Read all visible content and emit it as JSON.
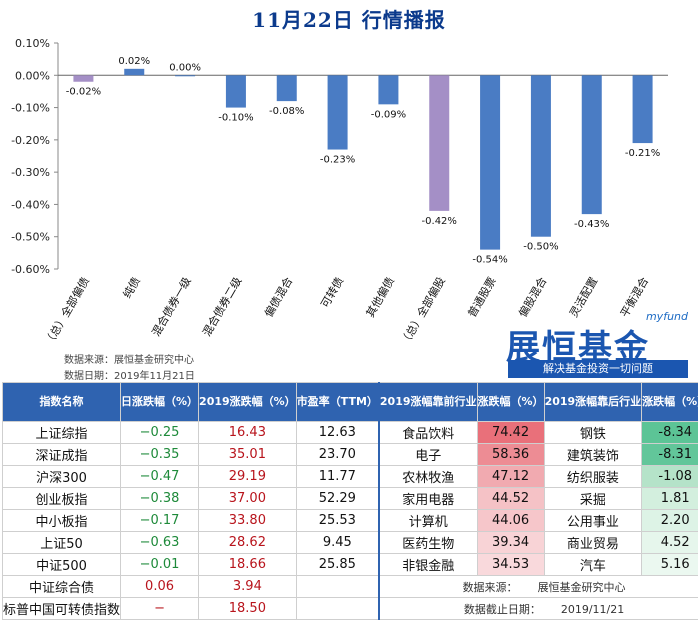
{
  "header": {
    "title": "11月22日 行情播报"
  },
  "chart_data": {
    "type": "bar",
    "categories": [
      "（总）全部偏债",
      "纯债",
      "混合债券一级",
      "混合债券二级",
      "偏债混合",
      "可转债",
      "其他偏债",
      "（总）全部偏股",
      "普通股票",
      "偏股混合",
      "灵活配置",
      "平衡混合"
    ],
    "values": [
      -0.02,
      0.02,
      0.0,
      -0.1,
      -0.08,
      -0.23,
      -0.09,
      -0.42,
      -0.54,
      -0.5,
      -0.43,
      -0.21
    ],
    "value_labels": [
      "-0.02%",
      "0.02%",
      "0.00%",
      "-0.10%",
      "-0.08%",
      "-0.23%",
      "-0.09%",
      "-0.42%",
      "-0.54%",
      "-0.50%",
      "-0.43%",
      "-0.21%"
    ],
    "ylim": [
      -0.6,
      0.1
    ],
    "yticks": [
      0.1,
      0.0,
      -0.1,
      -0.2,
      -0.3,
      -0.4,
      -0.5,
      -0.6
    ],
    "ytick_labels": [
      "0.10%",
      "0.00%",
      "-0.10%",
      "-0.20%",
      "-0.30%",
      "-0.40%",
      "-0.50%",
      "-0.60%"
    ],
    "grid": false,
    "bar_colors": [
      "#a48fc6",
      "#4a7cc4",
      "#4a7cc4",
      "#4a7cc4",
      "#4a7cc4",
      "#4a7cc4",
      "#4a7cc4",
      "#a48fc6",
      "#4a7cc4",
      "#4a7cc4",
      "#4a7cc4",
      "#4a7cc4"
    ]
  },
  "source": {
    "line1": "数据来源：展恒基金研究中心",
    "line2": "数据日期：2019年11月21日"
  },
  "logo": {
    "en": "myfund",
    "cn": "展恒基金",
    "slogan": "解决基金投资一切问题"
  },
  "table": {
    "headers": [
      "指数名称",
      "日涨跌幅（%）",
      "2019涨跌幅（%）",
      "市盈率（TTM）",
      "2019涨幅靠前行业",
      "涨跌幅（%）",
      "2019涨幅靠后行业",
      "涨跌幅（%）"
    ],
    "rows": [
      {
        "name": "上证综指",
        "day": "−0.25",
        "ytd": "16.43",
        "pe": "12.63",
        "top_ind": "食品饮料",
        "top_val": "74.42",
        "bot_ind": "钢铁",
        "bot_val": "-8.34"
      },
      {
        "name": "深证成指",
        "day": "−0.35",
        "ytd": "35.01",
        "pe": "23.70",
        "top_ind": "电子",
        "top_val": "58.36",
        "bot_ind": "建筑装饰",
        "bot_val": "-8.31"
      },
      {
        "name": "沪深300",
        "day": "−0.47",
        "ytd": "29.19",
        "pe": "11.77",
        "top_ind": "农林牧渔",
        "top_val": "47.12",
        "bot_ind": "纺织服装",
        "bot_val": "-1.08"
      },
      {
        "name": "创业板指",
        "day": "−0.38",
        "ytd": "37.00",
        "pe": "52.29",
        "top_ind": "家用电器",
        "top_val": "44.52",
        "bot_ind": "采掘",
        "bot_val": "1.81"
      },
      {
        "name": "中小板指",
        "day": "−0.17",
        "ytd": "33.80",
        "pe": "25.53",
        "top_ind": "计算机",
        "top_val": "44.06",
        "bot_ind": "公用事业",
        "bot_val": "2.20"
      },
      {
        "name": "上证50",
        "day": "−0.63",
        "ytd": "28.62",
        "pe": "9.45",
        "top_ind": "医药生物",
        "top_val": "39.34",
        "bot_ind": "商业贸易",
        "bot_val": "4.52"
      },
      {
        "name": "中证500",
        "day": "−0.01",
        "ytd": "18.66",
        "pe": "25.85",
        "top_ind": "非银金融",
        "top_val": "34.53",
        "bot_ind": "汽车",
        "bot_val": "5.16"
      }
    ],
    "extra_rows": [
      {
        "name": "中证综合债",
        "day": "0.06",
        "ytd": "3.94"
      },
      {
        "name": "标普中国可转债指数",
        "day": "−",
        "ytd": "18.50"
      }
    ],
    "foot": {
      "src_label": "数据来源：",
      "src_value": "展恒基金研究中心",
      "date_label": "数据截止日期：",
      "date_value": "2019/11/21"
    },
    "top_colors": [
      "#e9707a",
      "#ed8c94",
      "#f1aab0",
      "#f5c2c6",
      "#f6c6ca",
      "#f8d3d6",
      "#f9d9dc"
    ],
    "bot_colors": [
      "#5cc496",
      "#62c69a",
      "#b5e3c9",
      "#d3efde",
      "#ddf3e6",
      "#e6f6ec",
      "#ebf8f0"
    ]
  }
}
